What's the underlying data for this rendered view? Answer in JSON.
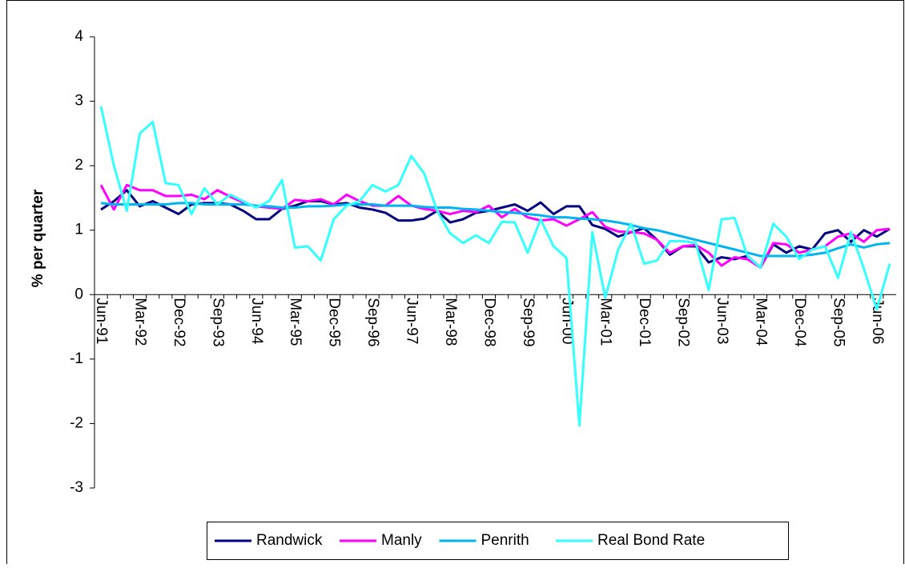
{
  "chart_data": {
    "type": "line",
    "y_label": "% per quarter",
    "categories": [
      "Jun-91",
      null,
      null,
      "Mar-92",
      null,
      null,
      "Dec-92",
      null,
      null,
      "Sep-93",
      null,
      null,
      "Jun-94",
      null,
      null,
      "Mar-95",
      null,
      null,
      "Dec-95",
      null,
      null,
      "Sep-96",
      null,
      null,
      "Jun-97",
      null,
      null,
      "Mar-98",
      null,
      null,
      "Dec-98",
      null,
      null,
      "Sep-99",
      null,
      null,
      "Jun-00",
      null,
      null,
      "Mar-01",
      null,
      null,
      "Dec-01",
      null,
      null,
      "Sep-02",
      null,
      null,
      "Jun-03",
      null,
      null,
      "Mar-04",
      null,
      null,
      "Dec-04",
      null,
      null,
      "Sep-05",
      null,
      null,
      "Jun-06",
      null
    ],
    "series": [
      {
        "name": "Randwick",
        "color": "#000080",
        "values": [
          1.32,
          1.45,
          1.62,
          1.37,
          1.45,
          1.35,
          1.25,
          1.4,
          1.42,
          1.42,
          1.4,
          1.3,
          1.17,
          1.17,
          1.33,
          1.38,
          1.45,
          1.45,
          1.4,
          1.42,
          1.35,
          1.32,
          1.27,
          1.15,
          1.15,
          1.18,
          1.3,
          1.12,
          1.17,
          1.27,
          1.3,
          1.35,
          1.4,
          1.3,
          1.43,
          1.25,
          1.37,
          1.37,
          1.08,
          1.02,
          0.9,
          0.97,
          1.03,
          0.85,
          0.62,
          0.75,
          0.75,
          0.5,
          0.58,
          0.55,
          0.6,
          0.42,
          0.78,
          0.65,
          0.75,
          0.7,
          0.95,
          1.0,
          0.82,
          1.0,
          0.9,
          1.02
        ]
      },
      {
        "name": "Manly",
        "color": "#ff00ff",
        "values": [
          1.7,
          1.32,
          1.7,
          1.62,
          1.62,
          1.53,
          1.53,
          1.55,
          1.48,
          1.62,
          1.52,
          1.43,
          1.37,
          1.35,
          1.33,
          1.47,
          1.45,
          1.48,
          1.4,
          1.55,
          1.45,
          1.38,
          1.38,
          1.53,
          1.38,
          1.33,
          1.3,
          1.25,
          1.3,
          1.28,
          1.38,
          1.2,
          1.33,
          1.2,
          1.15,
          1.17,
          1.07,
          1.17,
          1.28,
          1.05,
          0.98,
          0.97,
          0.95,
          0.85,
          0.65,
          0.75,
          0.77,
          0.65,
          0.45,
          0.58,
          0.55,
          0.42,
          0.8,
          0.78,
          0.65,
          0.7,
          0.75,
          0.9,
          0.95,
          0.82,
          1.0,
          1.02
        ]
      },
      {
        "name": "Penrith",
        "color": "#00b4f0",
        "values": [
          1.42,
          1.4,
          1.4,
          1.4,
          1.4,
          1.4,
          1.42,
          1.42,
          1.4,
          1.4,
          1.4,
          1.4,
          1.38,
          1.37,
          1.35,
          1.35,
          1.37,
          1.37,
          1.38,
          1.4,
          1.4,
          1.4,
          1.38,
          1.38,
          1.38,
          1.36,
          1.35,
          1.35,
          1.33,
          1.32,
          1.3,
          1.28,
          1.27,
          1.25,
          1.23,
          1.2,
          1.2,
          1.18,
          1.17,
          1.15,
          1.12,
          1.08,
          1.03,
          1.0,
          0.95,
          0.9,
          0.85,
          0.8,
          0.75,
          0.7,
          0.65,
          0.6,
          0.6,
          0.6,
          0.6,
          0.62,
          0.65,
          0.72,
          0.78,
          0.73,
          0.78,
          0.8
        ]
      },
      {
        "name": "Real Bond Rate",
        "color": "#33ffff",
        "values": [
          2.92,
          2.0,
          1.3,
          2.5,
          2.68,
          1.73,
          1.7,
          1.25,
          1.65,
          1.4,
          1.55,
          1.45,
          1.35,
          1.45,
          1.78,
          0.73,
          0.75,
          0.53,
          1.17,
          1.38,
          1.45,
          1.7,
          1.6,
          1.7,
          2.15,
          1.88,
          1.3,
          0.95,
          0.8,
          0.92,
          0.8,
          1.13,
          1.12,
          0.65,
          1.17,
          0.75,
          0.57,
          -2.03,
          0.97,
          -0.05,
          0.7,
          1.1,
          0.48,
          0.53,
          0.83,
          0.83,
          0.8,
          0.07,
          1.17,
          1.19,
          0.6,
          0.42,
          1.1,
          0.9,
          0.55,
          0.7,
          0.75,
          0.26,
          0.97,
          0.4,
          -0.23,
          0.48
        ]
      }
    ],
    "ylim": [
      -3,
      4
    ],
    "yticks": [
      -3,
      -2,
      -1,
      0,
      1,
      2,
      3,
      4
    ],
    "grid": false,
    "legend": "bottom"
  }
}
